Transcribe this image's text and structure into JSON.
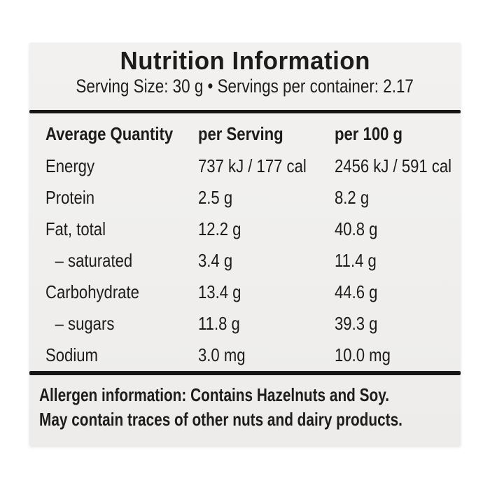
{
  "page": {
    "background_color": "#ffffff"
  },
  "label": {
    "colors": {
      "label_background": "#f1f0ee",
      "text": "#1d1c1a",
      "rule": "#161616"
    },
    "header": {
      "title": "Nutrition Information",
      "serving_info": "Serving Size: 30 g • Servings per container: 2.17"
    },
    "table": {
      "columns": {
        "name": "Average Quantity",
        "per_serving": "per Serving",
        "per_100g": "per 100 g"
      },
      "rows": [
        {
          "name": "Energy",
          "per_serving": "737 kJ / 177 cal",
          "per_100g": "2456 kJ / 591 cal"
        },
        {
          "name": "Protein",
          "per_serving": "2.5 g",
          "per_100g": "8.2 g"
        },
        {
          "name": "Fat, total",
          "per_serving": "12.2 g",
          "per_100g": "40.8 g"
        },
        {
          "name": "– saturated",
          "per_serving": "3.4 g",
          "per_100g": "11.4 g"
        },
        {
          "name": "Carbohydrate",
          "per_serving": "13.4 g",
          "per_100g": "44.6 g"
        },
        {
          "name": "– sugars",
          "per_serving": "11.8 g",
          "per_100g": "39.3 g"
        },
        {
          "name": "Sodium",
          "per_serving": "3.0 mg",
          "per_100g": "10.0 mg"
        }
      ]
    },
    "allergen": {
      "line1": "Allergen information: Contains Hazelnuts and Soy.",
      "line2": "May contain traces of other nuts and dairy products."
    }
  }
}
